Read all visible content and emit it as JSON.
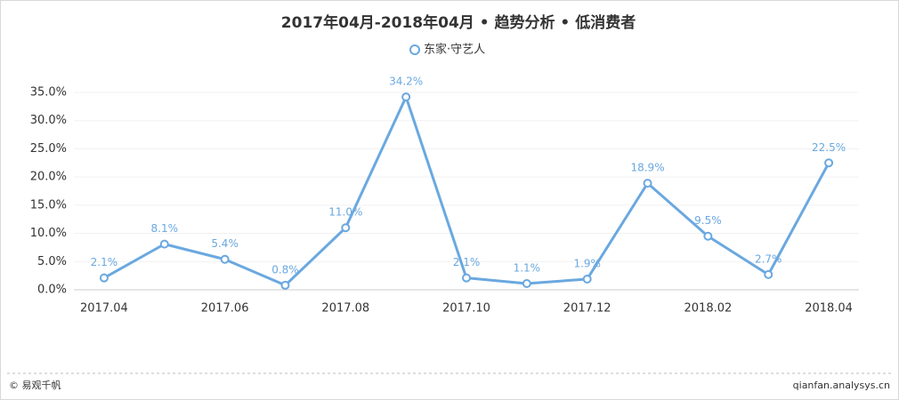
{
  "chart_data": {
    "type": "line",
    "title": "2017年04月-2018年04月 • 趋势分析 • 低消费者",
    "categories": [
      "2017.04",
      null,
      "2017.06",
      null,
      "2017.08",
      null,
      "2017.10",
      null,
      "2017.12",
      null,
      "2018.02",
      null,
      "2018.04"
    ],
    "series": [
      {
        "name": "东家·守艺人",
        "color": "#6aa8e0",
        "values": [
          2.1,
          8.1,
          5.4,
          0.8,
          11.0,
          34.2,
          2.1,
          1.1,
          1.9,
          18.9,
          9.5,
          2.7,
          22.5
        ],
        "value_labels": [
          "2.1%",
          "8.1%",
          "5.4%",
          "0.8%",
          "11.0%",
          "34.2%",
          "2.1%",
          "1.1%",
          "1.9%",
          "18.9%",
          "9.5%",
          "2.7%",
          "22.5%"
        ]
      }
    ],
    "ylim": [
      0,
      35
    ],
    "yticks": [
      {
        "value": 0,
        "label": "0.0%"
      },
      {
        "value": 5,
        "label": "5.0%"
      },
      {
        "value": 10,
        "label": "10.0%"
      },
      {
        "value": 15,
        "label": "15.0%"
      },
      {
        "value": 20,
        "label": "20.0%"
      },
      {
        "value": 25,
        "label": "25.0%"
      },
      {
        "value": 30,
        "label": "30.0%"
      },
      {
        "value": 35,
        "label": "35.0%"
      }
    ],
    "grid": true
  },
  "footer": {
    "left": "© 易观千帆",
    "right": "qianfan.analysys.cn"
  }
}
